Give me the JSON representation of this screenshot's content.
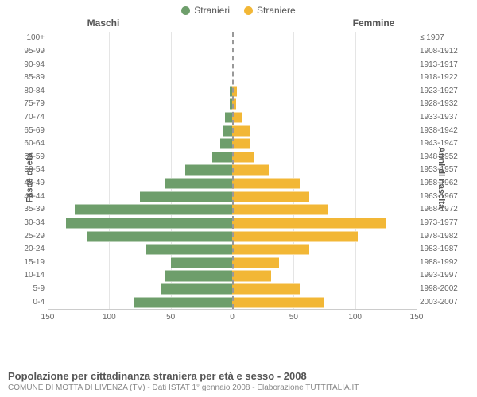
{
  "legend": {
    "male": {
      "label": "Stranieri",
      "color": "#6e9e6b"
    },
    "female": {
      "label": "Straniere",
      "color": "#f2b736"
    }
  },
  "col_titles": {
    "left": "Maschi",
    "right": "Femmine"
  },
  "axis_titles": {
    "left": "Fasce di età",
    "right": "Anni di nascita"
  },
  "x_axis": {
    "max": 150,
    "ticks_left": [
      150,
      100,
      50,
      0
    ],
    "ticks_right": [
      0,
      50,
      100,
      150
    ]
  },
  "rows": [
    {
      "age": "100+",
      "birth": "≤ 1907",
      "m": 0,
      "f": 0
    },
    {
      "age": "95-99",
      "birth": "1908-1912",
      "m": 0,
      "f": 0
    },
    {
      "age": "90-94",
      "birth": "1913-1917",
      "m": 0,
      "f": 0
    },
    {
      "age": "85-89",
      "birth": "1918-1922",
      "m": 0,
      "f": 0
    },
    {
      "age": "80-84",
      "birth": "1923-1927",
      "m": 2,
      "f": 4
    },
    {
      "age": "75-79",
      "birth": "1928-1932",
      "m": 2,
      "f": 3
    },
    {
      "age": "70-74",
      "birth": "1933-1937",
      "m": 6,
      "f": 8
    },
    {
      "age": "65-69",
      "birth": "1938-1942",
      "m": 7,
      "f": 14
    },
    {
      "age": "60-64",
      "birth": "1943-1947",
      "m": 10,
      "f": 14
    },
    {
      "age": "55-59",
      "birth": "1948-1952",
      "m": 16,
      "f": 18
    },
    {
      "age": "50-54",
      "birth": "1953-1957",
      "m": 38,
      "f": 30
    },
    {
      "age": "45-49",
      "birth": "1958-1962",
      "m": 55,
      "f": 55
    },
    {
      "age": "40-44",
      "birth": "1963-1967",
      "m": 75,
      "f": 63
    },
    {
      "age": "35-39",
      "birth": "1968-1972",
      "m": 128,
      "f": 78
    },
    {
      "age": "30-34",
      "birth": "1973-1977",
      "m": 135,
      "f": 125
    },
    {
      "age": "25-29",
      "birth": "1978-1982",
      "m": 118,
      "f": 102
    },
    {
      "age": "20-24",
      "birth": "1983-1987",
      "m": 70,
      "f": 63
    },
    {
      "age": "15-19",
      "birth": "1988-1992",
      "m": 50,
      "f": 38
    },
    {
      "age": "10-14",
      "birth": "1993-1997",
      "m": 55,
      "f": 32
    },
    {
      "age": "5-9",
      "birth": "1998-2002",
      "m": 58,
      "f": 55
    },
    {
      "age": "0-4",
      "birth": "2003-2007",
      "m": 80,
      "f": 75
    }
  ],
  "footer": {
    "title": "Popolazione per cittadinanza straniera per età e sesso - 2008",
    "sub": "COMUNE DI MOTTA DI LIVENZA (TV) - Dati ISTAT 1° gennaio 2008 - Elaborazione TUTTITALIA.IT"
  },
  "style": {
    "grid_color": "#e5e5e5",
    "center_dash_color": "#999",
    "row_height_ratio": 0.85
  }
}
